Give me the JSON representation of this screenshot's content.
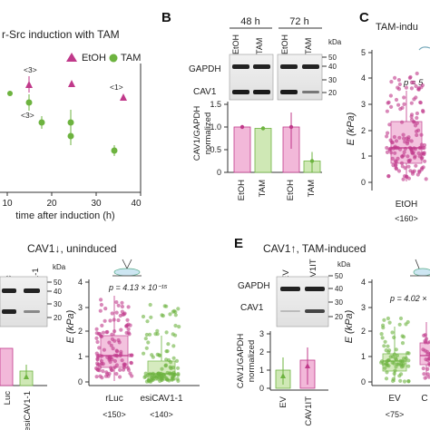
{
  "colors": {
    "etoh": "#c0398a",
    "tam": "#6db33f",
    "etoh_fill": "#f2b8d9",
    "tam_fill": "#cfe8b5",
    "blot_bg": "#e9e9e9",
    "band_dark": "#111111"
  },
  "panel_a": {
    "title": "r-Src induction with TAM",
    "legend": [
      "EtOH",
      "TAM"
    ],
    "xlabel": "time after induction (h)",
    "xticks": [
      "10",
      "20",
      "30",
      "40"
    ],
    "annotations": [
      "<3>",
      "<3>",
      "<1>"
    ]
  },
  "panel_b": {
    "label": "B",
    "headers": [
      "48 h",
      "72 h"
    ],
    "lanes": [
      "EtOH",
      "TAM",
      "EtOH",
      "TAM"
    ],
    "kda": "kDa",
    "kda_ticks": [
      "50",
      "40",
      "30",
      "20"
    ],
    "bands": [
      "GAPDH",
      "CAV1"
    ],
    "ylabel": [
      "CAV1/GAPDH",
      "normalized"
    ],
    "yticks": [
      "0",
      "0.5",
      "1.0",
      "1.5"
    ],
    "xcats": [
      "EtOH",
      "TAM",
      "EtOH",
      "TAM"
    ]
  },
  "panel_c": {
    "label": "C",
    "title": "TAM-indu",
    "ylabel": "E (kPa)",
    "yticks": [
      "0",
      "1",
      "2",
      "3",
      "4",
      "5"
    ],
    "pvalue": "p = 5",
    "xcat": "EtOH",
    "n": "<160>"
  },
  "panel_d": {
    "title": "CAV1↓, uninduced",
    "lanes": [
      "rLuc",
      "esiCAV1-1"
    ],
    "kda": "kDa",
    "kda_ticks": [
      "50",
      "40",
      "30",
      "20"
    ],
    "bar_xcats": [
      "Luc",
      "esiCAV1-1"
    ],
    "ylabel": "E (kPa)",
    "yticks": [
      "0",
      "1",
      "2",
      "3",
      "4"
    ],
    "pvalue": "p = 4.13 × 10⁻¹⁵",
    "xcats": [
      "rLuc",
      "esiCAV1-1"
    ],
    "n": [
      "<150>",
      "<140>"
    ]
  },
  "panel_e": {
    "label": "E",
    "title": "CAV1↑, TAM-induced",
    "lanes": [
      "EV",
      "CAV1IT"
    ],
    "bands": [
      "GAPDH",
      "CAV1"
    ],
    "kda": "kDa",
    "kda_ticks": [
      "50",
      "40",
      "30",
      "20"
    ],
    "bar_ylabel": [
      "CAV1/GAPDH",
      "normalized"
    ],
    "bar_yticks": [
      "0",
      "1",
      "2",
      "3"
    ],
    "bar_xcats": [
      "EV",
      "CAV1IT"
    ],
    "ylabel": "E (kPa)",
    "yticks": [
      "0",
      "1",
      "2",
      "3",
      "4"
    ],
    "pvalue": "p = 4.02 ×",
    "xcats": [
      "EV",
      "C"
    ],
    "n": [
      "<75>"
    ]
  },
  "chart_data": [
    {
      "type": "scatter",
      "title": "r-Src induction with TAM",
      "xlabel": "time after induction (h)",
      "ylabel": "",
      "xlim": [
        0,
        40
      ],
      "series": [
        {
          "name": "EtOH",
          "x": [
            12,
            24,
            36
          ],
          "y": [
            1.15,
            1.15,
            1.05
          ]
        },
        {
          "name": "TAM",
          "x": [
            12,
            16,
            24,
            36
          ],
          "y": [
            0.6,
            0.45,
            0.5,
            0.25
          ]
        }
      ]
    },
    {
      "type": "bar",
      "title": "",
      "categories": [
        "EtOH",
        "TAM",
        "EtOH",
        "TAM"
      ],
      "values": [
        1.0,
        0.97,
        1.0,
        0.25
      ],
      "ylim": [
        0,
        1.5
      ]
    },
    {
      "type": "bar",
      "title": "",
      "categories": [
        "EV",
        "CAV1IT"
      ],
      "values": [
        1.0,
        1.55
      ],
      "ylim": [
        0,
        3
      ]
    }
  ]
}
